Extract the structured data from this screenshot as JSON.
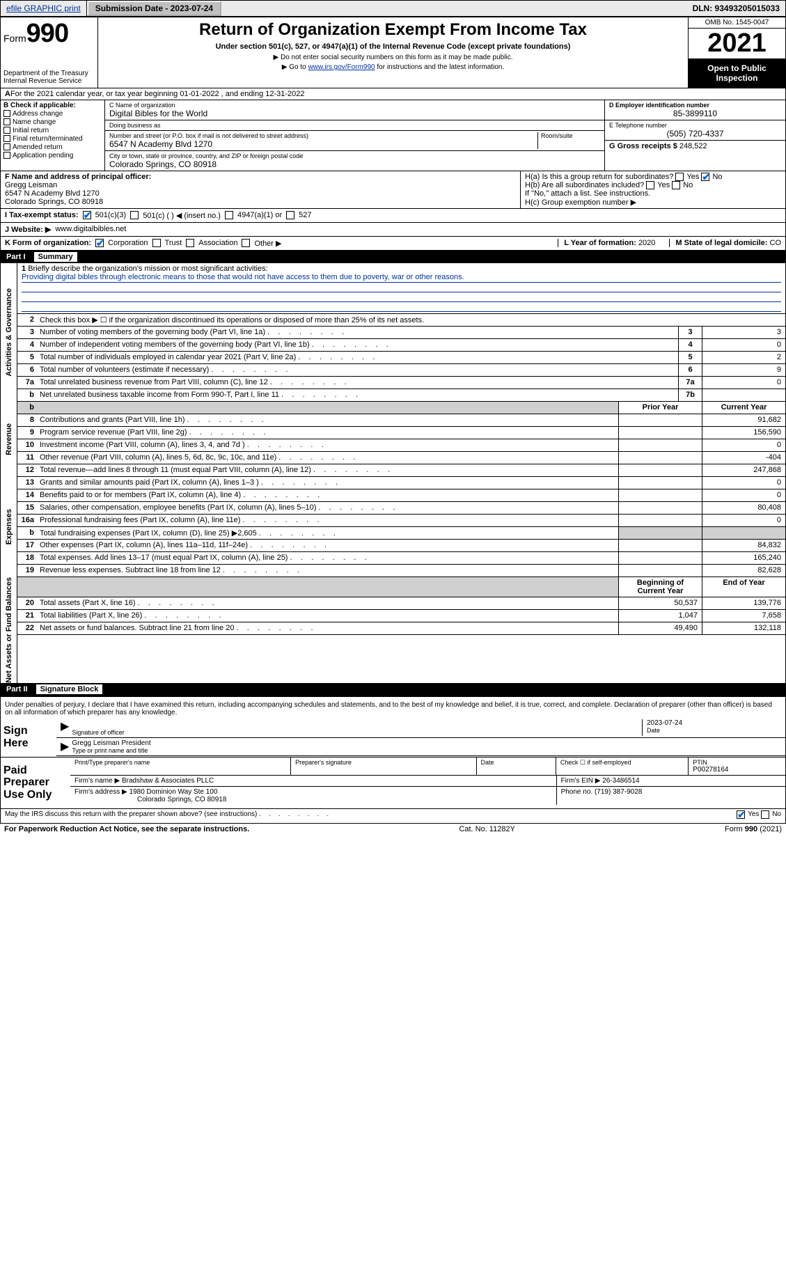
{
  "topbar": {
    "efile_label": "efile GRAPHIC print",
    "submission_label": "Submission Date - 2023-07-24",
    "dln_label": "DLN: 93493205015033"
  },
  "header": {
    "form_label": "Form",
    "form_number": "990",
    "dept": "Department of the Treasury",
    "irs": "Internal Revenue Service",
    "title": "Return of Organization Exempt From Income Tax",
    "subtitle": "Under section 501(c), 527, or 4947(a)(1) of the Internal Revenue Code (except private foundations)",
    "note1": "Do not enter social security numbers on this form as it may be made public.",
    "note2_pre": "Go to ",
    "note2_link": "www.irs.gov/Form990",
    "note2_post": " for instructions and the latest information.",
    "omb": "OMB No. 1545-0047",
    "year": "2021",
    "inspect1": "Open to Public",
    "inspect2": "Inspection"
  },
  "line_a": "For the 2021 calendar year, or tax year beginning 01-01-2022   , and ending 12-31-2022",
  "section_b": {
    "title": "B Check if applicable:",
    "opts": [
      "Address change",
      "Name change",
      "Initial return",
      "Final return/terminated",
      "Amended return",
      "Application pending"
    ]
  },
  "section_c": {
    "name_label": "C Name of organization",
    "name": "Digital Bibles for the World",
    "dba_label": "Doing business as",
    "dba": "",
    "street_label": "Number and street (or P.O. box if mail is not delivered to street address)",
    "room_label": "Room/suite",
    "street": "6547 N Academy Blvd 1270",
    "city_label": "City or town, state or province, country, and ZIP or foreign postal code",
    "city": "Colorado Springs, CO  80918"
  },
  "section_d": {
    "ein_label": "D Employer identification number",
    "ein": "85-3899110",
    "phone_label": "E Telephone number",
    "phone": "(505) 720-4337",
    "gross_label": "G Gross receipts $",
    "gross": "248,522"
  },
  "section_f": {
    "label": "F  Name and address of principal officer:",
    "name": "Gregg Leisman",
    "addr1": "6547 N Academy Blvd 1270",
    "addr2": "Colorado Springs, CO  80918"
  },
  "section_h": {
    "ha": "H(a)  Is this a group return for subordinates?",
    "hb": "H(b)  Are all subordinates included?",
    "hb_note": "If \"No,\" attach a list. See instructions.",
    "hc": "H(c)  Group exemption number ▶",
    "yes": "Yes",
    "no": "No"
  },
  "line_i": {
    "label": "I    Tax-exempt status:",
    "o1": "501(c)(3)",
    "o2": "501(c) (   ) ◀ (insert no.)",
    "o3": "4947(a)(1) or",
    "o4": "527"
  },
  "line_j": {
    "label": "J    Website: ▶",
    "val": "www.digitalbibles.net"
  },
  "line_k": {
    "label": "K Form of organization:",
    "o1": "Corporation",
    "o2": "Trust",
    "o3": "Association",
    "o4": "Other ▶",
    "l_label": "L Year of formation: ",
    "l_val": "2020",
    "m_label": "M State of legal domicile: ",
    "m_val": "CO"
  },
  "part1": {
    "header": "Part I",
    "title": "Summary",
    "tabs": {
      "ag": "Activities & Governance",
      "rev": "Revenue",
      "exp": "Expenses",
      "na": "Net Assets or Fund Balances"
    },
    "line1_label": "Briefly describe the organization's mission or most significant activities:",
    "line1_text": "Providing digital bibles through electronic means to those that would not have access to them due to poverty, war or other reasons.",
    "line2": "Check this box ▶ ☐  if the organization discontinued its operations or disposed of more than 25% of its net assets.",
    "rows_gov": [
      {
        "n": "3",
        "t": "Number of voting members of the governing body (Part VI, line 1a)",
        "b": "3",
        "v": "3"
      },
      {
        "n": "4",
        "t": "Number of independent voting members of the governing body (Part VI, line 1b)",
        "b": "4",
        "v": "0"
      },
      {
        "n": "5",
        "t": "Total number of individuals employed in calendar year 2021 (Part V, line 2a)",
        "b": "5",
        "v": "2"
      },
      {
        "n": "6",
        "t": "Total number of volunteers (estimate if necessary)",
        "b": "6",
        "v": "9"
      },
      {
        "n": "7a",
        "t": "Total unrelated business revenue from Part VIII, column (C), line 12",
        "b": "7a",
        "v": "0"
      },
      {
        "n": "b",
        "t": "Net unrelated business taxable income from Form 990-T, Part I, line 11",
        "b": "7b",
        "v": ""
      }
    ],
    "col_prior": "Prior Year",
    "col_curr": "Current Year",
    "rows_rev": [
      {
        "n": "8",
        "t": "Contributions and grants (Part VIII, line 1h)",
        "p": "",
        "c": "91,682"
      },
      {
        "n": "9",
        "t": "Program service revenue (Part VIII, line 2g)",
        "p": "",
        "c": "156,590"
      },
      {
        "n": "10",
        "t": "Investment income (Part VIII, column (A), lines 3, 4, and 7d )",
        "p": "",
        "c": "0"
      },
      {
        "n": "11",
        "t": "Other revenue (Part VIII, column (A), lines 5, 6d, 8c, 9c, 10c, and 11e)",
        "p": "",
        "c": "-404"
      },
      {
        "n": "12",
        "t": "Total revenue—add lines 8 through 11 (must equal Part VIII, column (A), line 12)",
        "p": "",
        "c": "247,868"
      }
    ],
    "rows_exp": [
      {
        "n": "13",
        "t": "Grants and similar amounts paid (Part IX, column (A), lines 1–3 )",
        "p": "",
        "c": "0"
      },
      {
        "n": "14",
        "t": "Benefits paid to or for members (Part IX, column (A), line 4)",
        "p": "",
        "c": "0"
      },
      {
        "n": "15",
        "t": "Salaries, other compensation, employee benefits (Part IX, column (A), lines 5–10)",
        "p": "",
        "c": "80,408"
      },
      {
        "n": "16a",
        "t": "Professional fundraising fees (Part IX, column (A), line 11e)",
        "p": "",
        "c": "0"
      },
      {
        "n": "b",
        "t": "Total fundraising expenses (Part IX, column (D), line 25) ▶2,605",
        "p": "shade",
        "c": "shade"
      },
      {
        "n": "17",
        "t": "Other expenses (Part IX, column (A), lines 11a–11d, 11f–24e)",
        "p": "",
        "c": "84,832"
      },
      {
        "n": "18",
        "t": "Total expenses. Add lines 13–17 (must equal Part IX, column (A), line 25)",
        "p": "",
        "c": "165,240"
      },
      {
        "n": "19",
        "t": "Revenue less expenses. Subtract line 18 from line 12",
        "p": "",
        "c": "82,628"
      }
    ],
    "col_beg": "Beginning of Current Year",
    "col_end": "End of Year",
    "rows_na": [
      {
        "n": "20",
        "t": "Total assets (Part X, line 16)",
        "p": "50,537",
        "c": "139,776"
      },
      {
        "n": "21",
        "t": "Total liabilities (Part X, line 26)",
        "p": "1,047",
        "c": "7,658"
      },
      {
        "n": "22",
        "t": "Net assets or fund balances. Subtract line 21 from line 20",
        "p": "49,490",
        "c": "132,118"
      }
    ]
  },
  "part2": {
    "header": "Part II",
    "title": "Signature Block",
    "decl": "Under penalties of perjury, I declare that I have examined this return, including accompanying schedules and statements, and to the best of my knowledge and belief, it is true, correct, and complete. Declaration of preparer (other than officer) is based on all information of which preparer has any knowledge.",
    "sign_here": "Sign Here",
    "sig_officer": "Signature of officer",
    "date_label": "Date",
    "date_val": "2023-07-24",
    "name_title": "Gregg Leisman  President",
    "name_title_label": "Type or print name and title",
    "paid": "Paid Preparer Use Only",
    "prep_name_label": "Print/Type preparer's name",
    "prep_sig_label": "Preparer's signature",
    "check_self": "Check ☐ if self-employed",
    "ptin_label": "PTIN",
    "ptin": "P00278164",
    "firm_name_label": "Firm's name    ▶",
    "firm_name": "Bradshaw & Associates PLLC",
    "firm_ein_label": "Firm's EIN ▶",
    "firm_ein": "26-3486514",
    "firm_addr_label": "Firm's address ▶",
    "firm_addr1": "1980 Dominion Way Ste 100",
    "firm_addr2": "Colorado Springs, CO  80918",
    "firm_phone_label": "Phone no.",
    "firm_phone": "(719) 387-9028",
    "discuss": "May the IRS discuss this return with the preparer shown above? (see instructions)",
    "yes": "Yes",
    "no": "No"
  },
  "footer": {
    "left": "For Paperwork Reduction Act Notice, see the separate instructions.",
    "mid": "Cat. No. 11282Y",
    "right": "Form 990 (2021)"
  },
  "colors": {
    "link": "#003399",
    "check": "#0066cc",
    "shade": "#d0d0d0"
  }
}
